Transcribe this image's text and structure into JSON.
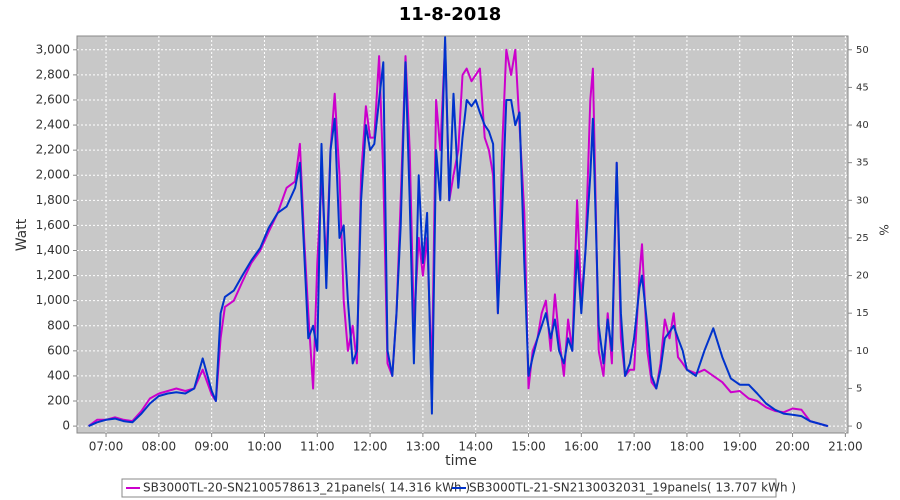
{
  "chart_data": {
    "type": "line",
    "title": "11-8-2018",
    "xlabel": "time",
    "ylabel": "Watt",
    "y2label": "%",
    "x": [
      6.67,
      6.83,
      7.0,
      7.17,
      7.33,
      7.5,
      7.67,
      7.83,
      8.0,
      8.17,
      8.33,
      8.5,
      8.67,
      8.83,
      9.0,
      9.08,
      9.17,
      9.25,
      9.42,
      9.58,
      9.75,
      9.92,
      10.08,
      10.25,
      10.42,
      10.58,
      10.67,
      10.75,
      10.83,
      10.92,
      11.0,
      11.08,
      11.17,
      11.25,
      11.33,
      11.42,
      11.5,
      11.58,
      11.67,
      11.75,
      11.83,
      11.92,
      12.0,
      12.08,
      12.17,
      12.25,
      12.33,
      12.42,
      12.5,
      12.58,
      12.67,
      12.75,
      12.83,
      12.92,
      13.0,
      13.08,
      13.17,
      13.25,
      13.33,
      13.42,
      13.5,
      13.58,
      13.67,
      13.75,
      13.83,
      13.92,
      14.0,
      14.08,
      14.17,
      14.25,
      14.33,
      14.42,
      14.5,
      14.58,
      14.67,
      14.75,
      14.83,
      14.92,
      15.0,
      15.08,
      15.17,
      15.25,
      15.33,
      15.42,
      15.5,
      15.58,
      15.67,
      15.75,
      15.83,
      15.92,
      16.0,
      16.08,
      16.17,
      16.22,
      16.33,
      16.42,
      16.5,
      16.58,
      16.67,
      16.75,
      16.83,
      16.92,
      17.0,
      17.1,
      17.15,
      17.25,
      17.33,
      17.42,
      17.5,
      17.58,
      17.67,
      17.75,
      17.83,
      17.92,
      18.0,
      18.17,
      18.33,
      18.5,
      18.67,
      18.83,
      19.0,
      19.17,
      19.33,
      19.5,
      19.67,
      19.83,
      20.0,
      20.17,
      20.33,
      20.5,
      20.67
    ],
    "series": [
      {
        "name": "SB3000TL-20-SN2100578613_21panels( 14.316 kWh )",
        "color": "#cc00cc",
        "values": [
          0,
          50,
          50,
          70,
          50,
          40,
          120,
          220,
          260,
          280,
          300,
          280,
          300,
          450,
          250,
          200,
          700,
          950,
          1000,
          1150,
          1300,
          1400,
          1550,
          1700,
          1900,
          1950,
          2250,
          1500,
          900,
          300,
          1300,
          2000,
          1300,
          2200,
          2650,
          2000,
          1000,
          600,
          800,
          500,
          2000,
          2550,
          2300,
          2300,
          2950,
          2000,
          500,
          400,
          900,
          1800,
          2950,
          2200,
          800,
          1500,
          1200,
          1500,
          400,
          2600,
          2200,
          3050,
          1800,
          2000,
          2200,
          2800,
          2850,
          2750,
          2800,
          2850,
          2300,
          2200,
          2000,
          900,
          2200,
          3000,
          2800,
          3000,
          2400,
          1700,
          300,
          600,
          700,
          900,
          1000,
          600,
          1050,
          700,
          400,
          850,
          600,
          1800,
          1000,
          1400,
          2600,
          2850,
          600,
          400,
          900,
          500,
          2100,
          700,
          400,
          450,
          450,
          1200,
          1450,
          600,
          350,
          300,
          500,
          850,
          700,
          900,
          550,
          500,
          450,
          420,
          450,
          400,
          350,
          270,
          280,
          220,
          200,
          150,
          120,
          110,
          140,
          130,
          40,
          20,
          0
        ]
      },
      {
        "name": "SB3000TL-21-SN2130032031_19panels( 13.707 kWh )",
        "color": "#0033cc",
        "values": [
          0,
          30,
          50,
          60,
          40,
          30,
          100,
          180,
          240,
          260,
          270,
          260,
          300,
          540,
          280,
          200,
          900,
          1030,
          1080,
          1200,
          1320,
          1420,
          1580,
          1700,
          1750,
          1900,
          2100,
          1400,
          700,
          800,
          600,
          2250,
          1100,
          2200,
          2450,
          1500,
          1600,
          1000,
          500,
          600,
          1800,
          2400,
          2200,
          2250,
          2600,
          2900,
          600,
          400,
          900,
          1600,
          2900,
          1800,
          500,
          2000,
          1300,
          1700,
          100,
          2200,
          1800,
          3100,
          1800,
          2650,
          1900,
          2300,
          2600,
          2550,
          2600,
          2500,
          2400,
          2350,
          2250,
          900,
          1700,
          2600,
          2600,
          2400,
          2500,
          1300,
          400,
          550,
          700,
          800,
          900,
          700,
          850,
          600,
          500,
          700,
          600,
          1400,
          900,
          1400,
          2000,
          2450,
          800,
          500,
          850,
          600,
          2100,
          900,
          400,
          500,
          700,
          1100,
          1200,
          800,
          400,
          300,
          450,
          700,
          750,
          800,
          700,
          600,
          450,
          400,
          600,
          780,
          550,
          380,
          330,
          330,
          260,
          180,
          130,
          100,
          90,
          80,
          40,
          20,
          0
        ]
      }
    ],
    "xlim": [
      6.45,
      21.05
    ],
    "xticks": [
      {
        "value": 7,
        "label": "07:00"
      },
      {
        "value": 8,
        "label": "08:00"
      },
      {
        "value": 9,
        "label": "09:00"
      },
      {
        "value": 10,
        "label": "10:00"
      },
      {
        "value": 11,
        "label": "11:00"
      },
      {
        "value": 12,
        "label": "12:00"
      },
      {
        "value": 13,
        "label": "13:00"
      },
      {
        "value": 14,
        "label": "14:00"
      },
      {
        "value": 15,
        "label": "15:00"
      },
      {
        "value": 16,
        "label": "16:00"
      },
      {
        "value": 17,
        "label": "17:00"
      },
      {
        "value": 18,
        "label": "18:00"
      },
      {
        "value": 19,
        "label": "19:00"
      },
      {
        "value": 20,
        "label": "20:00"
      },
      {
        "value": 21,
        "label": "21:00"
      }
    ],
    "ylim": [
      -55,
      3110
    ],
    "yticks": [
      0,
      200,
      400,
      600,
      800,
      {
        "value": 1000,
        "label": "1,000"
      },
      {
        "value": 1200,
        "label": "1,200"
      },
      {
        "value": 1400,
        "label": "1,400"
      },
      {
        "value": 1600,
        "label": "1,600"
      },
      {
        "value": 1800,
        "label": "1,800"
      },
      {
        "value": 2000,
        "label": "2,000"
      },
      {
        "value": 2200,
        "label": "2,200"
      },
      {
        "value": 2400,
        "label": "2,400"
      },
      {
        "value": 2600,
        "label": "2,600"
      },
      {
        "value": 2800,
        "label": "2,800"
      },
      {
        "value": 3000,
        "label": "3,000"
      }
    ],
    "y2lim": [
      -0.92,
      51.83
    ],
    "y2ticks": [
      0,
      5,
      10,
      15,
      20,
      25,
      30,
      35,
      40,
      45,
      50
    ],
    "grid": true
  }
}
